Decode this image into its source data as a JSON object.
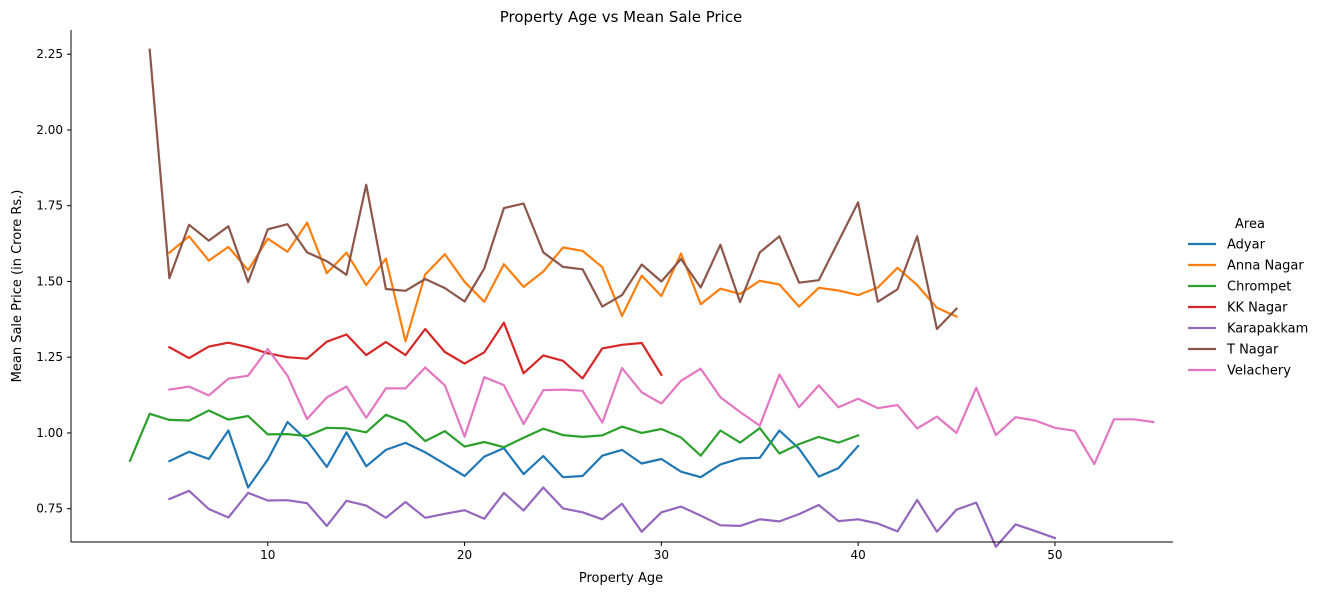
{
  "chart_data": {
    "type": "line",
    "title": "Property Age vs Mean Sale Price",
    "xlabel": "Property Age",
    "ylabel": "Mean Sale Price (in Crore Rs.)",
    "xlim": [
      0,
      56
    ],
    "ylim": [
      0.64,
      2.33
    ],
    "xticks": [
      10,
      20,
      30,
      40,
      50
    ],
    "yticks": [
      0.75,
      1.0,
      1.25,
      1.5,
      1.75,
      2.0,
      2.25
    ],
    "ytick_labels": [
      "0.75",
      "1.00",
      "1.25",
      "1.50",
      "1.75",
      "2.00",
      "2.25"
    ],
    "grid": false,
    "legend": {
      "title": "Area",
      "placement": "right"
    },
    "series": [
      {
        "name": "Adyar",
        "color": "#1f77b4",
        "x": [
          5,
          6,
          7,
          8,
          9,
          10,
          11,
          12,
          13,
          14,
          15,
          16,
          17,
          18,
          19,
          20,
          21,
          22,
          23,
          24,
          25,
          26,
          27,
          28,
          29,
          30,
          31,
          32,
          33,
          34,
          35,
          36,
          37,
          38,
          39,
          40
        ],
        "y": [
          0.907,
          0.938,
          0.914,
          1.008,
          0.82,
          0.912,
          1.036,
          0.975,
          0.888,
          1.002,
          0.89,
          0.944,
          0.967,
          0.936,
          0.897,
          0.858,
          0.922,
          0.95,
          0.864,
          0.924,
          0.854,
          0.858,
          0.925,
          0.944,
          0.899,
          0.914,
          0.872,
          0.854,
          0.896,
          0.916,
          0.918,
          1.008,
          0.948,
          0.856,
          0.884,
          0.957
        ]
      },
      {
        "name": "Anna Nagar",
        "color": "#ff7f0e",
        "x": [
          5,
          6,
          7,
          8,
          9,
          10,
          11,
          12,
          13,
          14,
          15,
          16,
          17,
          18,
          19,
          20,
          21,
          22,
          23,
          24,
          25,
          26,
          27,
          28,
          29,
          30,
          31,
          32,
          33,
          34,
          35,
          36,
          37,
          38,
          39,
          40,
          41,
          42,
          43,
          44,
          45
        ],
        "y": [
          1.595,
          1.649,
          1.569,
          1.614,
          1.537,
          1.641,
          1.598,
          1.694,
          1.527,
          1.595,
          1.488,
          1.575,
          1.302,
          1.523,
          1.59,
          1.499,
          1.433,
          1.557,
          1.482,
          1.533,
          1.612,
          1.601,
          1.547,
          1.386,
          1.519,
          1.452,
          1.592,
          1.425,
          1.476,
          1.459,
          1.502,
          1.49,
          1.417,
          1.479,
          1.47,
          1.455,
          1.48,
          1.545,
          1.488,
          1.413,
          1.384
        ]
      },
      {
        "name": "Chrompet",
        "color": "#2ca02c",
        "x": [
          3,
          4,
          5,
          6,
          7,
          8,
          9,
          10,
          11,
          12,
          13,
          14,
          15,
          16,
          17,
          18,
          19,
          20,
          21,
          22,
          23,
          24,
          25,
          26,
          27,
          28,
          29,
          30,
          31,
          32,
          33,
          34,
          35,
          36,
          37,
          38,
          39,
          40
        ],
        "y": [
          0.908,
          1.063,
          1.043,
          1.041,
          1.074,
          1.044,
          1.056,
          0.995,
          0.996,
          0.99,
          1.017,
          1.015,
          1.002,
          1.06,
          1.035,
          0.973,
          1.006,
          0.955,
          0.97,
          0.953,
          0.984,
          1.014,
          0.993,
          0.987,
          0.992,
          1.021,
          1.0,
          1.013,
          0.985,
          0.925,
          1.008,
          0.968,
          1.016,
          0.932,
          0.963,
          0.987,
          0.968,
          0.992
        ]
      },
      {
        "name": "KK Nagar",
        "color": "#d62728",
        "x": [
          5,
          6,
          7,
          8,
          9,
          10,
          11,
          12,
          13,
          14,
          15,
          16,
          17,
          18,
          19,
          20,
          21,
          22,
          23,
          24,
          25,
          26,
          27,
          28,
          29,
          30
        ],
        "y": [
          1.283,
          1.247,
          1.285,
          1.298,
          1.283,
          1.263,
          1.25,
          1.245,
          1.301,
          1.325,
          1.257,
          1.3,
          1.257,
          1.343,
          1.267,
          1.229,
          1.266,
          1.364,
          1.197,
          1.256,
          1.238,
          1.18,
          1.279,
          1.291,
          1.297,
          1.192
        ]
      },
      {
        "name": "Karapakkam",
        "color": "#9467bd",
        "x": [
          5,
          6,
          7,
          8,
          9,
          10,
          11,
          12,
          13,
          14,
          15,
          16,
          17,
          18,
          19,
          20,
          21,
          22,
          23,
          24,
          25,
          26,
          27,
          28,
          29,
          30,
          31,
          32,
          33,
          34,
          35,
          36,
          37,
          38,
          39,
          40,
          41,
          42,
          43,
          44,
          45,
          46,
          47,
          48,
          49,
          50
        ],
        "y": [
          0.782,
          0.809,
          0.749,
          0.721,
          0.802,
          0.777,
          0.778,
          0.768,
          0.693,
          0.776,
          0.76,
          0.72,
          0.772,
          0.72,
          0.733,
          0.745,
          0.717,
          0.802,
          0.744,
          0.82,
          0.751,
          0.738,
          0.715,
          0.766,
          0.674,
          0.738,
          0.757,
          0.727,
          0.695,
          0.693,
          0.715,
          0.708,
          0.732,
          0.762,
          0.709,
          0.715,
          0.701,
          0.675,
          0.779,
          0.674,
          0.747,
          0.77,
          0.624,
          0.698,
          0.676,
          0.653
        ]
      },
      {
        "name": "T Nagar",
        "color": "#8c564b",
        "x": [
          4,
          5,
          6,
          7,
          8,
          9,
          10,
          11,
          12,
          13,
          14,
          15,
          16,
          17,
          18,
          19,
          20,
          21,
          22,
          23,
          24,
          25,
          26,
          27,
          28,
          29,
          30,
          31,
          32,
          33,
          34,
          35,
          36,
          37,
          38,
          39,
          40,
          41,
          42,
          43,
          44,
          45
        ],
        "y": [
          2.265,
          1.511,
          1.687,
          1.635,
          1.682,
          1.498,
          1.672,
          1.689,
          1.596,
          1.567,
          1.522,
          1.819,
          1.475,
          1.469,
          1.508,
          1.478,
          1.434,
          1.543,
          1.742,
          1.757,
          1.596,
          1.548,
          1.54,
          1.417,
          1.455,
          1.556,
          1.5,
          1.574,
          1.48,
          1.621,
          1.432,
          1.596,
          1.649,
          1.496,
          1.504,
          1.633,
          1.761,
          1.433,
          1.474,
          1.649,
          1.343,
          1.41
        ]
      },
      {
        "name": "Velachery",
        "color": "#e377c2",
        "x": [
          5,
          6,
          7,
          8,
          9,
          10,
          11,
          12,
          13,
          14,
          15,
          16,
          17,
          18,
          19,
          20,
          21,
          22,
          23,
          24,
          25,
          26,
          27,
          28,
          29,
          30,
          31,
          32,
          33,
          34,
          35,
          36,
          37,
          38,
          39,
          40,
          41,
          42,
          43,
          44,
          45,
          46,
          47,
          48,
          49,
          50,
          51,
          52,
          53,
          54,
          55
        ],
        "y": [
          1.143,
          1.153,
          1.124,
          1.179,
          1.189,
          1.277,
          1.189,
          1.046,
          1.117,
          1.153,
          1.05,
          1.147,
          1.147,
          1.216,
          1.157,
          0.988,
          1.184,
          1.158,
          1.029,
          1.141,
          1.143,
          1.139,
          1.034,
          1.214,
          1.134,
          1.097,
          1.172,
          1.212,
          1.118,
          1.069,
          1.024,
          1.193,
          1.085,
          1.157,
          1.085,
          1.113,
          1.082,
          1.092,
          1.015,
          1.054,
          1.0,
          1.149,
          0.993,
          1.052,
          1.041,
          1.017,
          1.007,
          0.897,
          1.045,
          1.045,
          1.036
        ]
      }
    ]
  }
}
